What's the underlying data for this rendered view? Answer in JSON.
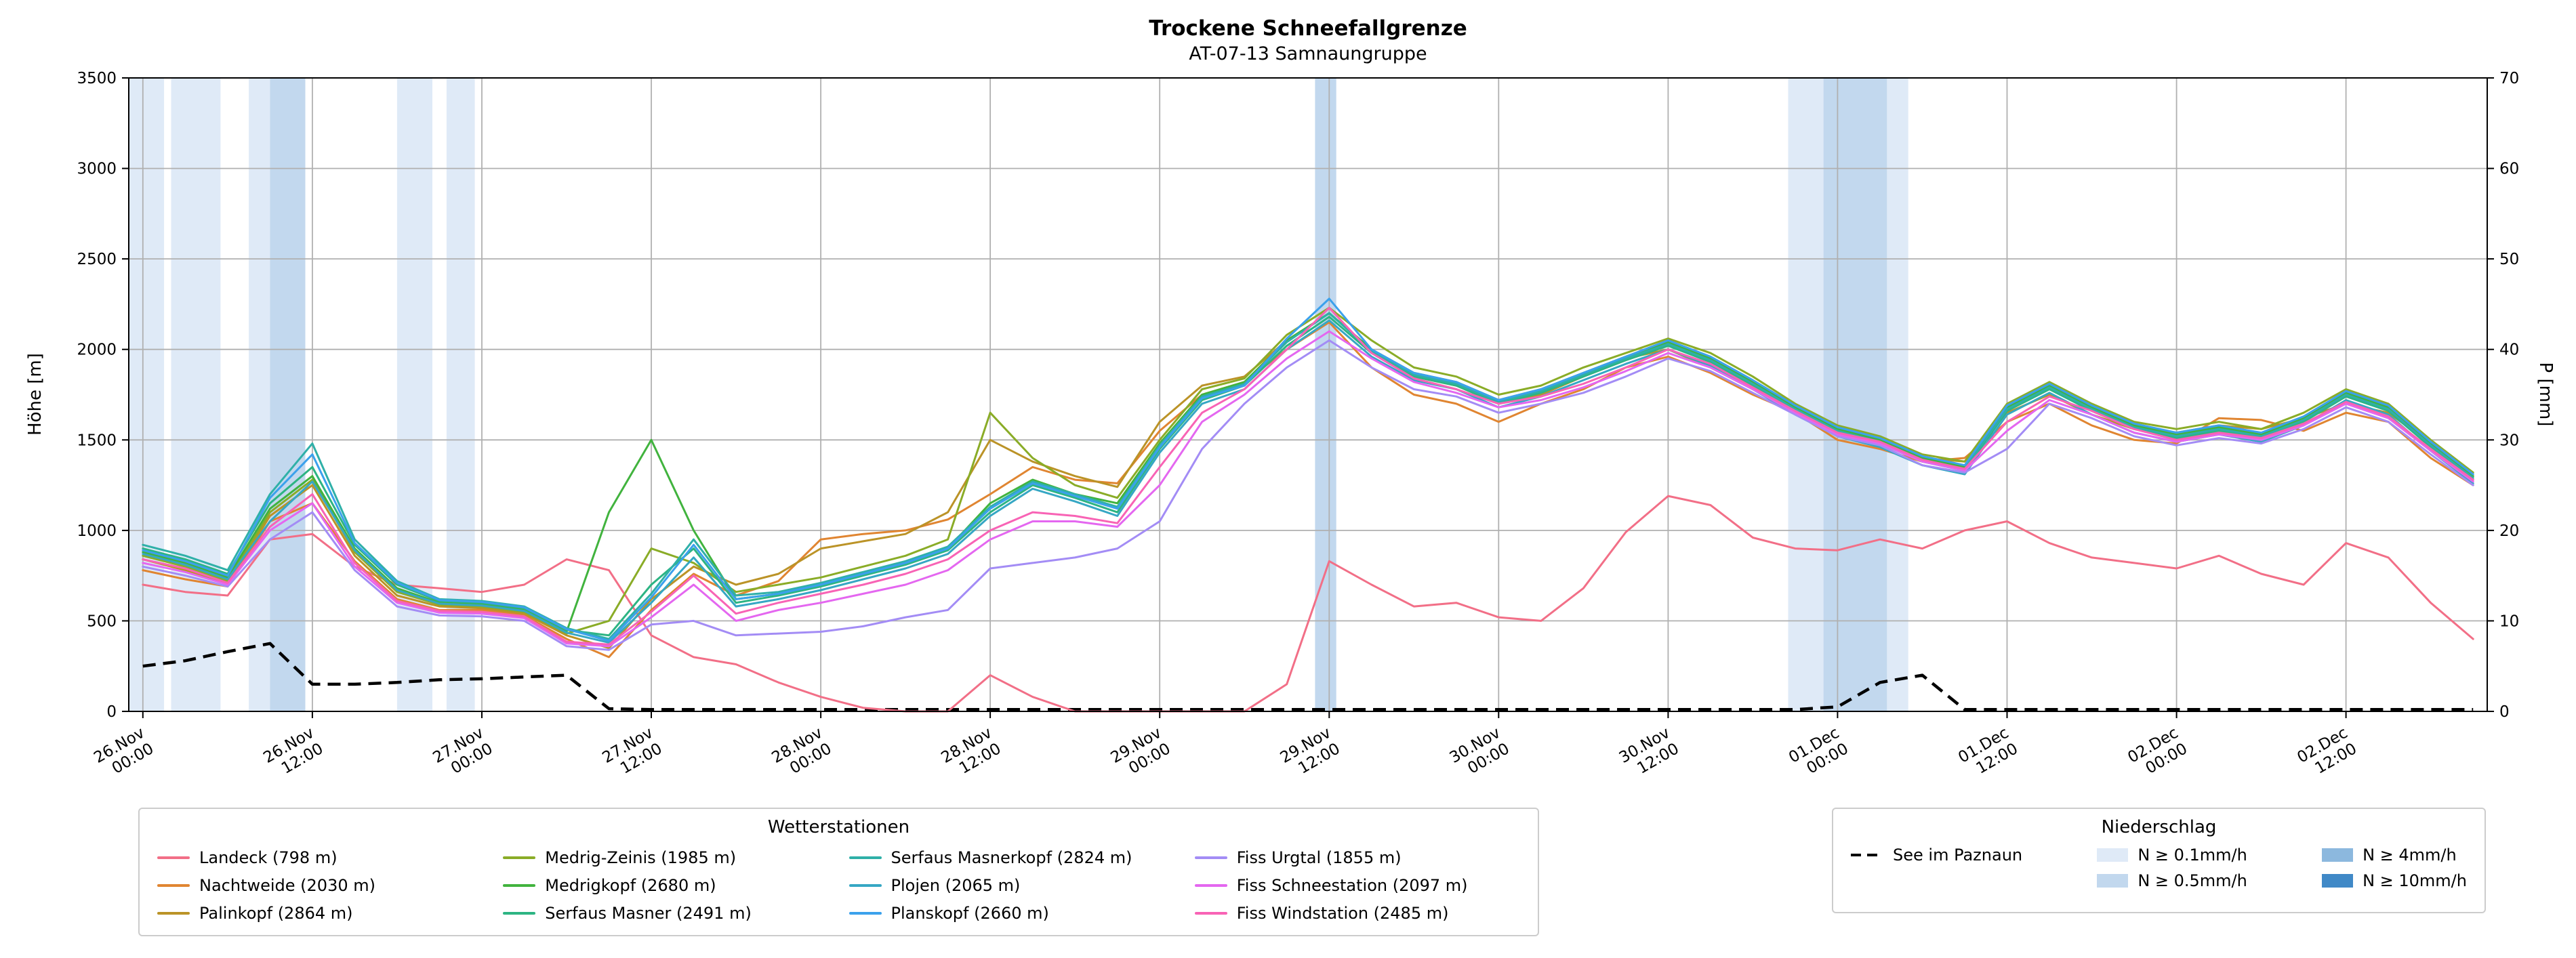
{
  "chart_data": {
    "type": "line",
    "title": "Trockene Schneefallgrenze",
    "subtitle": "AT-07-13 Samnaungruppe",
    "ylabel_left": "Höhe [m]",
    "ylabel_right": "P [mm]",
    "ylim_left": [
      0,
      3500
    ],
    "ylim_right": [
      0,
      70
    ],
    "y_left_ticks": [
      0,
      500,
      1000,
      1500,
      2000,
      2500,
      3000,
      3500
    ],
    "y_right_ticks": [
      0,
      10,
      20,
      30,
      40,
      50,
      60,
      70
    ],
    "grid": true,
    "legend_position": "below",
    "x_range_hours": [
      -1,
      166
    ],
    "x_ticks": [
      {
        "hour": 0,
        "line1": "26.Nov",
        "line2": "00:00"
      },
      {
        "hour": 12,
        "line1": "26.Nov",
        "line2": "12:00"
      },
      {
        "hour": 24,
        "line1": "27.Nov",
        "line2": "00:00"
      },
      {
        "hour": 36,
        "line1": "27.Nov",
        "line2": "12:00"
      },
      {
        "hour": 48,
        "line1": "28.Nov",
        "line2": "00:00"
      },
      {
        "hour": 60,
        "line1": "28.Nov",
        "line2": "12:00"
      },
      {
        "hour": 72,
        "line1": "29.Nov",
        "line2": "00:00"
      },
      {
        "hour": 84,
        "line1": "29.Nov",
        "line2": "12:00"
      },
      {
        "hour": 96,
        "line1": "30.Nov",
        "line2": "00:00"
      },
      {
        "hour": 108,
        "line1": "30.Nov",
        "line2": "12:00"
      },
      {
        "hour": 120,
        "line1": "01.Dec",
        "line2": "00:00"
      },
      {
        "hour": 132,
        "line1": "01.Dec",
        "line2": "12:00"
      },
      {
        "hour": 144,
        "line1": "02.Dec",
        "line2": "00:00"
      },
      {
        "hour": 156,
        "line1": "02.Dec",
        "line2": "12:00"
      }
    ],
    "x_hours": [
      0,
      3,
      6,
      9,
      12,
      15,
      18,
      21,
      24,
      27,
      30,
      33,
      36,
      39,
      42,
      45,
      48,
      51,
      54,
      57,
      60,
      63,
      66,
      69,
      72,
      75,
      78,
      81,
      84,
      87,
      90,
      93,
      96,
      99,
      102,
      105,
      108,
      111,
      114,
      117,
      120,
      123,
      126,
      129,
      132,
      135,
      138,
      141,
      144,
      147,
      150,
      153,
      156,
      159,
      162,
      165
    ],
    "series": [
      {
        "name": "Landeck (798 m)",
        "station": "Landeck",
        "elevation_m": 798,
        "color": "#f26f87",
        "values": [
          700,
          660,
          640,
          950,
          980,
          800,
          700,
          680,
          660,
          700,
          840,
          780,
          420,
          300,
          260,
          160,
          80,
          20,
          0,
          0,
          200,
          80,
          0,
          0,
          0,
          0,
          0,
          150,
          830,
          700,
          580,
          600,
          520,
          500,
          680,
          990,
          1190,
          1140,
          960,
          900,
          890,
          950,
          900,
          1000,
          1050,
          930,
          850,
          820,
          790,
          860,
          760,
          700,
          930,
          850,
          600,
          400
        ]
      },
      {
        "name": "Nachtweide (2030 m)",
        "station": "Nachtweide",
        "elevation_m": 2030,
        "color": "#e08531",
        "values": [
          780,
          730,
          690,
          1050,
          1150,
          830,
          620,
          560,
          560,
          530,
          400,
          300,
          560,
          760,
          640,
          720,
          950,
          980,
          1000,
          1060,
          1200,
          1350,
          1280,
          1260,
          1550,
          1750,
          1820,
          2000,
          2150,
          1900,
          1750,
          1700,
          1600,
          1700,
          1780,
          1900,
          1960,
          1870,
          1750,
          1650,
          1500,
          1450,
          1380,
          1400,
          1600,
          1700,
          1580,
          1500,
          1480,
          1620,
          1610,
          1550,
          1650,
          1600,
          1400,
          1250
        ]
      },
      {
        "name": "Palinkopf (2864 m)",
        "station": "Palinkopf",
        "elevation_m": 2864,
        "color": "#bb9327",
        "values": [
          840,
          780,
          700,
          1080,
          1250,
          860,
          640,
          580,
          570,
          540,
          420,
          350,
          620,
          800,
          700,
          760,
          900,
          940,
          980,
          1100,
          1500,
          1380,
          1300,
          1240,
          1600,
          1800,
          1850,
          2050,
          2200,
          2000,
          1850,
          1800,
          1700,
          1750,
          1850,
          1950,
          2000,
          1900,
          1780,
          1680,
          1560,
          1480,
          1400,
          1380,
          1650,
          1750,
          1640,
          1560,
          1540,
          1580,
          1560,
          1620,
          1700,
          1650,
          1480,
          1300
        ]
      },
      {
        "name": "Medrig-Zeinis (1985 m)",
        "station": "Medrig-Zeinis",
        "elevation_m": 1985,
        "color": "#8aac27",
        "values": [
          860,
          800,
          720,
          1100,
          1280,
          880,
          660,
          590,
          580,
          550,
          430,
          500,
          900,
          820,
          660,
          700,
          740,
          800,
          860,
          950,
          1650,
          1400,
          1250,
          1180,
          1500,
          1780,
          1840,
          2080,
          2230,
          2050,
          1900,
          1850,
          1750,
          1800,
          1900,
          1980,
          2060,
          1980,
          1850,
          1700,
          1580,
          1520,
          1420,
          1380,
          1700,
          1820,
          1700,
          1600,
          1560,
          1600,
          1560,
          1650,
          1780,
          1700,
          1500,
          1320
        ]
      },
      {
        "name": "Medrigkopf (2680 m)",
        "station": "Medrigkopf",
        "elevation_m": 2680,
        "color": "#41b33e",
        "values": [
          880,
          820,
          740,
          1120,
          1300,
          900,
          680,
          600,
          590,
          560,
          440,
          1100,
          1500,
          1000,
          620,
          650,
          700,
          760,
          820,
          900,
          1150,
          1280,
          1200,
          1150,
          1480,
          1750,
          1820,
          2050,
          2200,
          2000,
          1870,
          1820,
          1720,
          1780,
          1870,
          1960,
          2040,
          1950,
          1820,
          1680,
          1560,
          1500,
          1400,
          1350,
          1680,
          1800,
          1680,
          1580,
          1530,
          1570,
          1530,
          1620,
          1760,
          1680,
          1480,
          1300
        ]
      },
      {
        "name": "Serfaus Masner (2491 m)",
        "station": "Serfaus Masner",
        "elevation_m": 2491,
        "color": "#2db483",
        "values": [
          900,
          840,
          760,
          1150,
          1350,
          920,
          700,
          610,
          600,
          570,
          450,
          420,
          700,
          900,
          600,
          640,
          690,
          750,
          810,
          890,
          1100,
          1250,
          1180,
          1100,
          1450,
          1720,
          1800,
          2020,
          2180,
          1980,
          1850,
          1800,
          1700,
          1760,
          1850,
          1940,
          2020,
          1930,
          1800,
          1660,
          1540,
          1480,
          1380,
          1330,
          1660,
          1780,
          1660,
          1560,
          1510,
          1550,
          1510,
          1600,
          1740,
          1660,
          1460,
          1280
        ]
      },
      {
        "name": "Serfaus Masnerkopf (2824 m)",
        "station": "Serfaus Masnerkopf",
        "elevation_m": 2824,
        "color": "#2fb0a8",
        "values": [
          920,
          860,
          780,
          1200,
          1480,
          950,
          720,
          620,
          610,
          580,
          460,
          400,
          650,
          950,
          640,
          660,
          710,
          770,
          830,
          910,
          1130,
          1270,
          1200,
          1130,
          1470,
          1740,
          1810,
          2040,
          2200,
          1990,
          1860,
          1810,
          1710,
          1770,
          1860,
          1950,
          2030,
          1940,
          1810,
          1670,
          1550,
          1490,
          1390,
          1340,
          1670,
          1790,
          1670,
          1570,
          1520,
          1560,
          1520,
          1610,
          1750,
          1670,
          1470,
          1290
        ]
      },
      {
        "name": "Plojen (2065 m)",
        "station": "Plojen",
        "elevation_m": 2065,
        "color": "#36a7c4",
        "values": [
          870,
          810,
          730,
          1050,
          1270,
          890,
          670,
          595,
          585,
          555,
          435,
          380,
          600,
          850,
          580,
          620,
          670,
          730,
          790,
          870,
          1080,
          1230,
          1160,
          1080,
          1430,
          1700,
          1780,
          2000,
          2160,
          1960,
          1830,
          1780,
          1680,
          1740,
          1830,
          1920,
          2000,
          1910,
          1780,
          1640,
          1520,
          1460,
          1360,
          1310,
          1640,
          1760,
          1640,
          1540,
          1490,
          1530,
          1490,
          1580,
          1720,
          1640,
          1440,
          1260
        ]
      },
      {
        "name": "Planskopf (2660 m)",
        "station": "Planskopf",
        "elevation_m": 2660,
        "color": "#3ba1ec",
        "values": [
          890,
          830,
          750,
          1180,
          1420,
          930,
          710,
          615,
          605,
          575,
          455,
          390,
          630,
          920,
          620,
          650,
          700,
          760,
          820,
          900,
          1120,
          1260,
          1190,
          1120,
          1460,
          1730,
          1800,
          2060,
          2280,
          2000,
          1870,
          1820,
          1720,
          1780,
          1870,
          1960,
          2050,
          1960,
          1830,
          1690,
          1570,
          1510,
          1410,
          1360,
          1690,
          1810,
          1690,
          1590,
          1540,
          1580,
          1540,
          1630,
          1770,
          1690,
          1490,
          1310
        ]
      },
      {
        "name": "Fiss Urgtal (1855 m)",
        "station": "Fiss Urgtal",
        "elevation_m": 1855,
        "color": "#a38cf5",
        "values": [
          800,
          750,
          690,
          950,
          1100,
          780,
          580,
          530,
          525,
          500,
          360,
          340,
          480,
          500,
          420,
          430,
          440,
          470,
          520,
          560,
          790,
          820,
          850,
          900,
          1050,
          1450,
          1700,
          1900,
          2050,
          1900,
          1780,
          1740,
          1650,
          1700,
          1760,
          1850,
          1950,
          1880,
          1760,
          1640,
          1520,
          1470,
          1360,
          1320,
          1450,
          1700,
          1620,
          1520,
          1470,
          1510,
          1480,
          1560,
          1680,
          1600,
          1420,
          1250
        ]
      },
      {
        "name": "Fiss Schneestation (2097 m)",
        "station": "Fiss Schneestation",
        "elevation_m": 2097,
        "color": "#e467f0",
        "values": [
          820,
          770,
          700,
          1000,
          1150,
          800,
          600,
          545,
          540,
          515,
          375,
          360,
          520,
          700,
          500,
          560,
          600,
          650,
          700,
          780,
          950,
          1050,
          1050,
          1020,
          1250,
          1600,
          1750,
          1950,
          2100,
          1950,
          1820,
          1760,
          1680,
          1720,
          1790,
          1880,
          1980,
          1900,
          1780,
          1650,
          1530,
          1480,
          1380,
          1330,
          1550,
          1720,
          1640,
          1540,
          1490,
          1530,
          1500,
          1580,
          1700,
          1620,
          1440,
          1270
        ]
      },
      {
        "name": "Fiss Windstation (2485 m)",
        "station": "Fiss Windstation",
        "elevation_m": 2485,
        "color": "#f863b5",
        "values": [
          840,
          790,
          710,
          1020,
          1200,
          820,
          610,
          555,
          550,
          525,
          385,
          370,
          550,
          750,
          540,
          600,
          650,
          700,
          760,
          840,
          1000,
          1100,
          1080,
          1040,
          1350,
          1650,
          1780,
          2000,
          2230,
          1980,
          1840,
          1780,
          1700,
          1740,
          1810,
          1900,
          2000,
          1920,
          1790,
          1660,
          1540,
          1490,
          1390,
          1340,
          1600,
          1740,
          1660,
          1560,
          1500,
          1540,
          1510,
          1590,
          1710,
          1630,
          1450,
          1280
        ]
      }
    ],
    "paznaun": {
      "name": "See im Paznaun",
      "color": "#000000",
      "style": "dashed",
      "axis": "right",
      "values": [
        5.0,
        5.6,
        6.6,
        7.5,
        3.0,
        3.0,
        3.2,
        3.5,
        3.6,
        3.8,
        4.0,
        0.3,
        0.2,
        0.2,
        0.2,
        0.2,
        0.2,
        0.2,
        0.2,
        0.2,
        0.2,
        0.2,
        0.2,
        0.2,
        0.2,
        0.2,
        0.2,
        0.2,
        0.2,
        0.2,
        0.2,
        0.2,
        0.2,
        0.2,
        0.2,
        0.2,
        0.2,
        0.2,
        0.2,
        0.2,
        0.5,
        3.2,
        4.0,
        0.2,
        0.2,
        0.2,
        0.2,
        0.2,
        0.2,
        0.2,
        0.2,
        0.2,
        0.2,
        0.2,
        0.2,
        0.2
      ]
    },
    "precip_bands": [
      {
        "start_hour": -1,
        "end_hour": 1.5,
        "intensity": "0.1"
      },
      {
        "start_hour": 2,
        "end_hour": 5.5,
        "intensity": "0.1"
      },
      {
        "start_hour": 7.5,
        "end_hour": 9,
        "intensity": "0.1"
      },
      {
        "start_hour": 9,
        "end_hour": 11.5,
        "intensity": "0.5"
      },
      {
        "start_hour": 18,
        "end_hour": 20.5,
        "intensity": "0.1"
      },
      {
        "start_hour": 21.5,
        "end_hour": 23.5,
        "intensity": "0.1"
      },
      {
        "start_hour": 83,
        "end_hour": 84.5,
        "intensity": "0.5"
      },
      {
        "start_hour": 116.5,
        "end_hour": 119,
        "intensity": "0.1"
      },
      {
        "start_hour": 119,
        "end_hour": 123.5,
        "intensity": "0.5"
      },
      {
        "start_hour": 123.5,
        "end_hour": 125,
        "intensity": "0.1"
      }
    ],
    "band_colors": {
      "0.1": "#dfeaf7",
      "0.5": "#c2d8ee",
      "4": "#8cb8de",
      "10": "#4089c7"
    },
    "grid_color": "#b0b0b0"
  },
  "legend_stations": {
    "title": "Wetterstationen"
  },
  "legend_precip": {
    "title": "Niederschlag",
    "line_label": "See im Paznaun",
    "items": [
      {
        "label": "N ≥ 0.1mm/h",
        "key": "0.1"
      },
      {
        "label": "N ≥ 0.5mm/h",
        "key": "0.5"
      },
      {
        "label": "N ≥ 4mm/h",
        "key": "4"
      },
      {
        "label": "N ≥ 10mm/h",
        "key": "10"
      }
    ]
  }
}
